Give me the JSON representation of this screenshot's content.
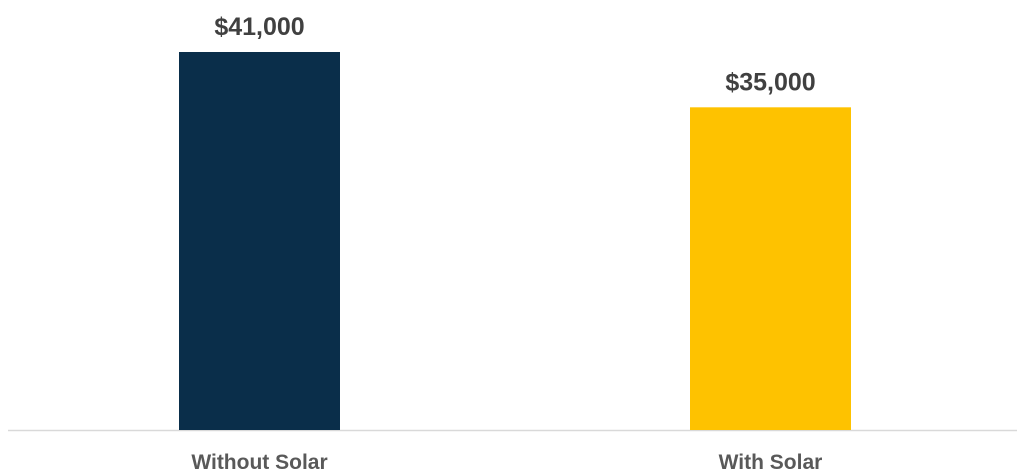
{
  "chart_data": {
    "type": "bar",
    "categories": [
      "Without Solar",
      "With Solar"
    ],
    "values": [
      41000,
      35000
    ],
    "value_labels": [
      "$41,000",
      "$35,000"
    ],
    "colors": [
      "#0a2e4a",
      "#fec200"
    ]
  }
}
